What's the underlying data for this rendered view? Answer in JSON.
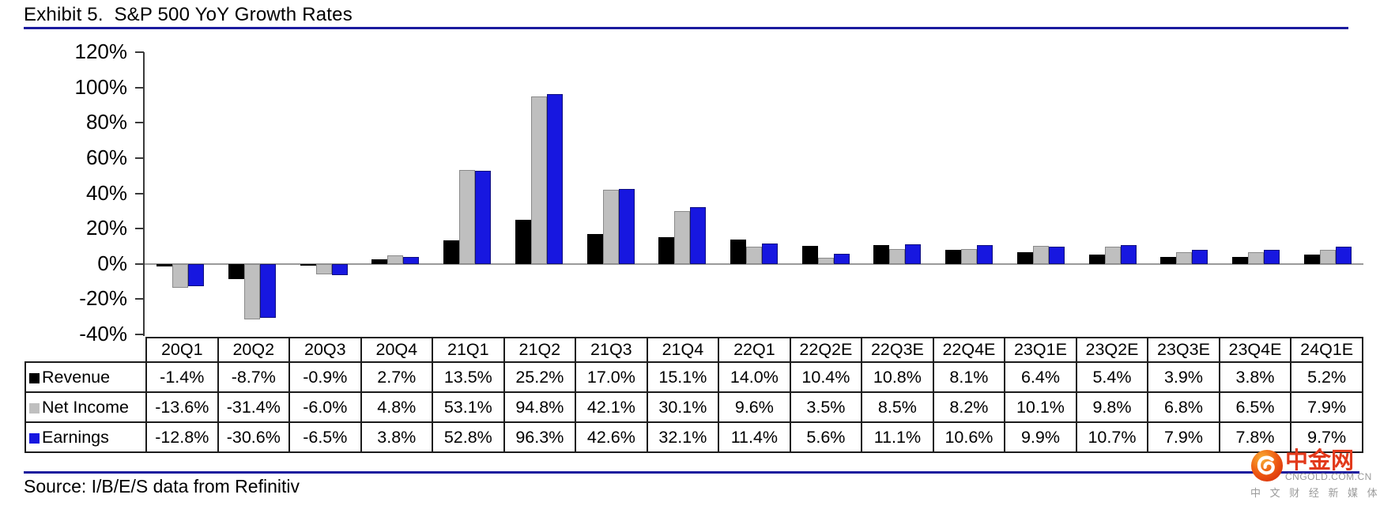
{
  "header": {
    "title": "Exhibit 5.  S&P 500 YoY Growth Rates"
  },
  "source": {
    "label": "Source: I/B/E/S data from Refinitiv"
  },
  "watermark": {
    "brand": "中金网",
    "domain": "CNGOLD.COM.CN",
    "tagline": "中 文 财 经 新 媒 体"
  },
  "colors": {
    "rule": "#1b1b9e",
    "axis": "#3a3a3a",
    "zero_line": "#9a9a9a",
    "revenue": "#000000",
    "net_income": "#bfbfbf",
    "net_income_border": "#8a8a8a",
    "earnings": "#1717e0",
    "earnings_border": "#10107e",
    "table_border": "#1c1c1c",
    "watermark_red": "#e2391b",
    "watermark_gray": "#9a9a9a"
  },
  "chart_data": {
    "type": "bar",
    "title": "S&P 500 YoY Growth Rates",
    "xlabel": "",
    "ylabel": "",
    "ylim": [
      -40,
      120
    ],
    "ytick_step": 20,
    "ytick_labels": [
      "120%",
      "100%",
      "80%",
      "60%",
      "40%",
      "20%",
      "0%",
      "-20%",
      "-40%"
    ],
    "grid": false,
    "legend_position": "table-left",
    "value_suffix": "%",
    "categories": [
      "20Q1",
      "20Q2",
      "20Q3",
      "20Q4",
      "21Q1",
      "21Q2",
      "21Q3",
      "21Q4",
      "22Q1",
      "22Q2E",
      "22Q3E",
      "22Q4E",
      "23Q1E",
      "23Q2E",
      "23Q3E",
      "23Q4E",
      "24Q1E"
    ],
    "series": [
      {
        "name": "Revenue",
        "color_key": "revenue",
        "values": [
          -1.4,
          -8.7,
          -0.9,
          2.7,
          13.5,
          25.2,
          17.0,
          15.1,
          14.0,
          10.4,
          10.8,
          8.1,
          6.4,
          5.4,
          3.9,
          3.8,
          5.2
        ]
      },
      {
        "name": "Net Income",
        "color_key": "net_income",
        "values": [
          -13.6,
          -31.4,
          -6.0,
          4.8,
          53.1,
          94.8,
          42.1,
          30.1,
          9.6,
          3.5,
          8.5,
          8.2,
          10.1,
          9.8,
          6.8,
          6.5,
          7.9
        ]
      },
      {
        "name": "Earnings",
        "color_key": "earnings",
        "values": [
          -12.8,
          -30.6,
          -6.5,
          3.8,
          52.8,
          96.3,
          42.6,
          32.1,
          11.4,
          5.6,
          11.1,
          10.6,
          9.9,
          10.7,
          7.9,
          7.8,
          9.7
        ]
      }
    ]
  }
}
